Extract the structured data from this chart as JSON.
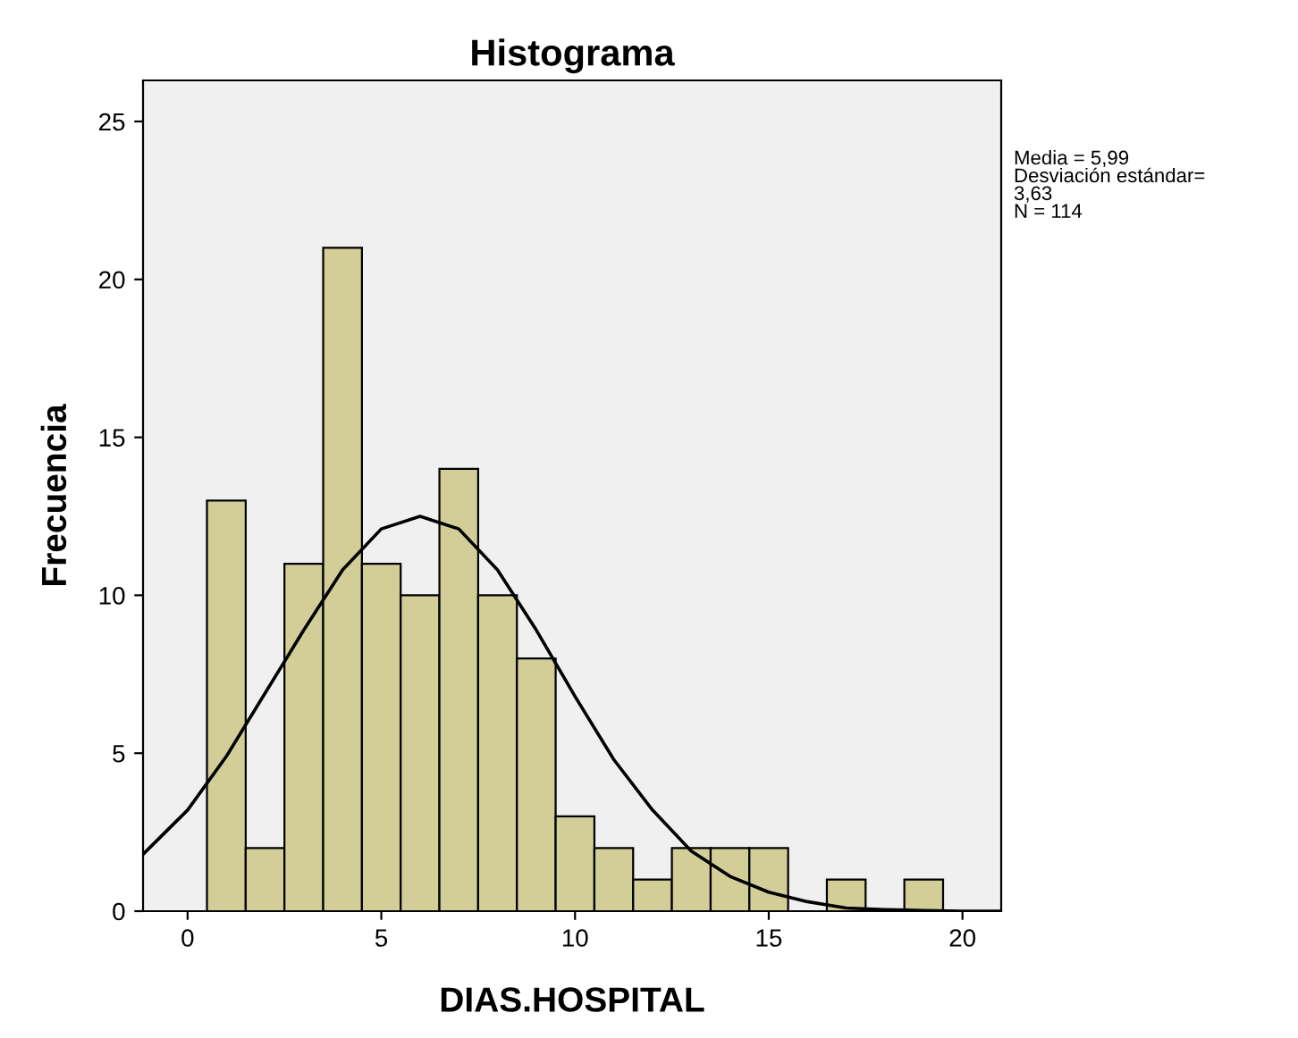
{
  "chart_data": {
    "type": "histogram",
    "title": "Histograma",
    "xlabel": "DIAS.HOSPITAL",
    "ylabel": "Frecuencia",
    "bins": [
      0.5,
      1.5,
      2.5,
      3.5,
      4.5,
      5.5,
      6.5,
      7.5,
      8.5,
      9.5,
      10.5,
      11.5,
      12.5,
      13.5,
      14.5,
      15.5,
      16.5,
      17.5,
      18.5,
      19.5
    ],
    "values": [
      13,
      2,
      11,
      21,
      11,
      10,
      14,
      10,
      8,
      3,
      2,
      1,
      2,
      2,
      2,
      0,
      1,
      0,
      1
    ],
    "color": "#d3ce97",
    "series": [
      {
        "type": "line",
        "color": "#000000",
        "x": [
          -1.15,
          0,
          1,
          2,
          3,
          4,
          5,
          6,
          7,
          8,
          9,
          10,
          11,
          12,
          13,
          14,
          15,
          16,
          17,
          18,
          19,
          20,
          21
        ],
        "values": [
          1.8,
          3.2,
          4.9,
          6.9,
          8.9,
          10.8,
          12.1,
          12.5,
          12.1,
          10.8,
          8.9,
          6.8,
          4.8,
          3.2,
          1.9,
          1.1,
          0.6,
          0.3,
          0.1,
          0.05,
          0.02,
          0.0,
          0.0
        ]
      }
    ],
    "xlim": [
      -1.15,
      21
    ],
    "ylim": [
      0,
      26.3
    ],
    "xticks": [
      0,
      5,
      10,
      15,
      20
    ],
    "yticks": [
      0,
      5,
      10,
      15,
      20,
      25
    ],
    "grid": false,
    "annotations": [
      "Media = 5,99\nDesviación estándar=\n3,63\nN = 114"
    ]
  }
}
